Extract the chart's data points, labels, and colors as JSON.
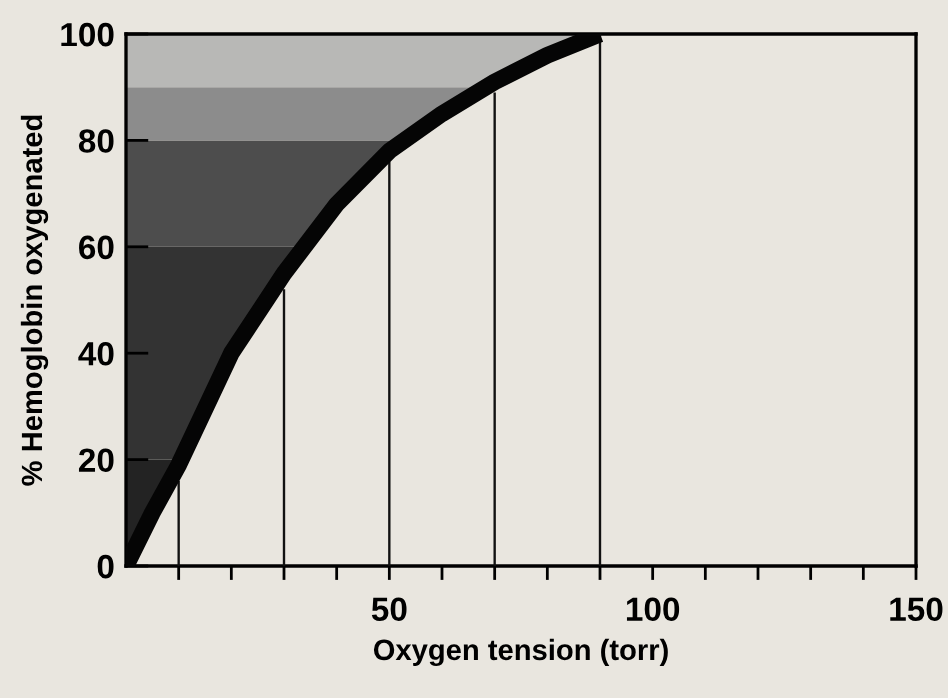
{
  "chart_data": {
    "type": "line",
    "xlabel": "Oxygen tension (torr)",
    "ylabel": "% Hemoglobin oxygenated",
    "xlim": [
      0,
      150
    ],
    "ylim": [
      0,
      100
    ],
    "xticks": [
      {
        "value": 10,
        "label": null
      },
      {
        "value": 20,
        "label": null
      },
      {
        "value": 30,
        "label": null
      },
      {
        "value": 40,
        "label": null
      },
      50,
      {
        "value": 60,
        "label": null
      },
      {
        "value": 70,
        "label": null
      },
      {
        "value": 80,
        "label": null
      },
      {
        "value": 90,
        "label": null
      },
      100,
      {
        "value": 110,
        "label": null
      },
      {
        "value": 120,
        "label": null
      },
      {
        "value": 130,
        "label": null
      },
      {
        "value": 140,
        "label": null
      },
      150
    ],
    "yticks": [
      0,
      20,
      40,
      60,
      80,
      100
    ],
    "grid": false,
    "legend": false,
    "series": [
      {
        "color": "#050505",
        "x": [
          0,
          5,
          10,
          20,
          30,
          40,
          50,
          60,
          70,
          80,
          90
        ],
        "values": [
          0,
          10,
          19,
          40,
          55,
          68,
          78,
          85,
          91,
          96,
          100
        ]
      },
      {
        "type": "bar",
        "color": "#111111",
        "x": [
          10,
          30,
          50,
          70,
          90
        ],
        "values": [
          16,
          52,
          76,
          89,
          100
        ]
      }
    ],
    "bands": [
      {
        "axis": "y",
        "from": 0,
        "to": 20,
        "color": "#232323"
      },
      {
        "axis": "y",
        "from": 20,
        "to": 60,
        "color": "#333333"
      },
      {
        "axis": "y",
        "from": 60,
        "to": 80,
        "color": "#4d4d4d"
      },
      {
        "axis": "y",
        "from": 80,
        "to": 90,
        "color": "#8c8c8c"
      },
      {
        "axis": "y",
        "from": 90,
        "to": 100,
        "color": "#b8b8b6"
      }
    ]
  }
}
